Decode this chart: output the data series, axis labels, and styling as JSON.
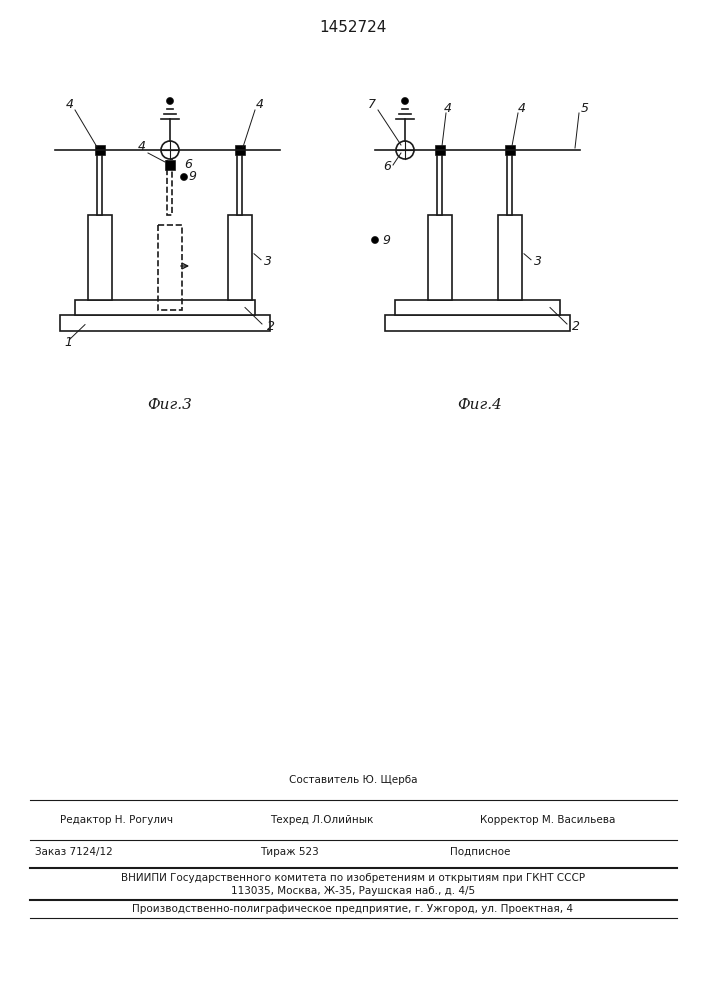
{
  "title": "1452724",
  "bg_color": "#ffffff",
  "line_color": "#1a1a1a",
  "fig3_label": "Фиг.3",
  "fig4_label": "Фиг.4",
  "footer_sostavitel": "Составитель Ю. Щерба",
  "footer_redaktor": "Редактор Н. Рогулич",
  "footer_tekhred": "Техред Л.Олийнык",
  "footer_korrektor": "Корректор М. Васильева",
  "footer_zakaz": "Заказ 7124/12",
  "footer_tirazh": "Тираж 523",
  "footer_podpisnoe": "Подписное",
  "footer_vniip1": "ВНИИПИ Государственного комитета по изобретениям и открытиям при ГКНТ СССР",
  "footer_vniip2": "113035, Москва, Ж-35, Раушская наб., д. 4/5",
  "footer_proizvod": "Производственно-полиграфическое предприятие, г. Ужгород, ул. Проектная, 4"
}
